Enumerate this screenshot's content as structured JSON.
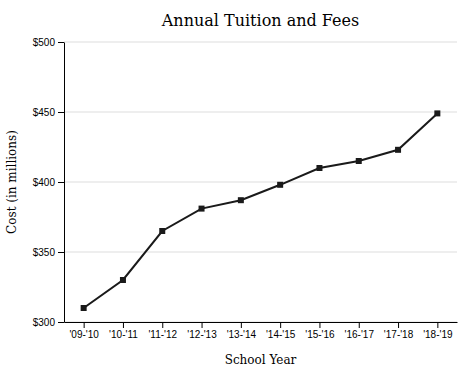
{
  "chart_data": {
    "type": "line",
    "title": "Annual Tuition and Fees",
    "xlabel": "School Year",
    "ylabel": "Cost (in millions)",
    "categories": [
      "'09-'10",
      "'10-'11",
      "'11-'12",
      "'12-'13",
      "'13-'14",
      "'14-'15",
      "'15-'16",
      "'16-'17",
      "'17-'18",
      "'18-'19"
    ],
    "values": [
      310,
      330,
      365,
      381,
      387,
      398,
      410,
      415,
      423,
      449
    ],
    "color": "#1a1a1a",
    "marker": "square",
    "ylim": [
      300,
      500
    ],
    "yticks": [
      {
        "value": 300,
        "label": "$300"
      },
      {
        "value": 350,
        "label": "$350"
      },
      {
        "value": 400,
        "label": "$400"
      },
      {
        "value": 450,
        "label": "$450"
      },
      {
        "value": 500,
        "label": "$500"
      }
    ],
    "grid": true
  }
}
